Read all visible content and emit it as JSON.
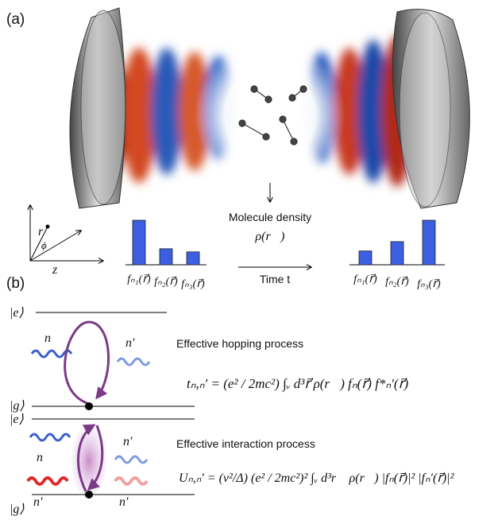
{
  "panel_a": {
    "label": "(a)",
    "axes": {
      "r": "r",
      "phi": "ϕ",
      "z": "z"
    },
    "density_label": "Molecule density",
    "density_symbol": "ρ(r⃗)",
    "time_label": "Time t",
    "before": {
      "labels": [
        "fₙ₁(r⃗)",
        "fₙ₂(r⃗)",
        "fₙ₃(r⃗)"
      ],
      "values": [
        1.0,
        0.36,
        0.29
      ]
    },
    "after": {
      "labels": [
        "fₙ₁(r⃗)",
        "fₙ₂(r⃗)",
        "fₙ₃(r⃗)"
      ],
      "values": [
        0.31,
        0.52,
        1.0
      ]
    }
  },
  "panel_b": {
    "label": "(b)",
    "hopping": {
      "title": "Effective hopping process",
      "formula": "tₙ,ₙ′ = (e² / 2mc²) ∫ᵥ d³r⃗ ρ(r⃗) fₙ(r⃗) f*ₙ′(r⃗)",
      "excited": "|e⟩",
      "ground": "|g⟩",
      "n_in": "n",
      "n_out": "n′"
    },
    "interaction": {
      "title": "Effective interaction process",
      "formula": "Uₙ,ₙ′ = (ν²/Δ) (e² / 2mc²)² ∫ᵥ d³r⃗ ρ(r⃗) |fₙ(r⃗)|² |fₙ′(r⃗)|²",
      "excited": "|e⟩",
      "ground": "|g⟩",
      "n_in": "n",
      "n_out": "n′",
      "n_in2": "n′",
      "n_out2": "n′"
    }
  }
}
